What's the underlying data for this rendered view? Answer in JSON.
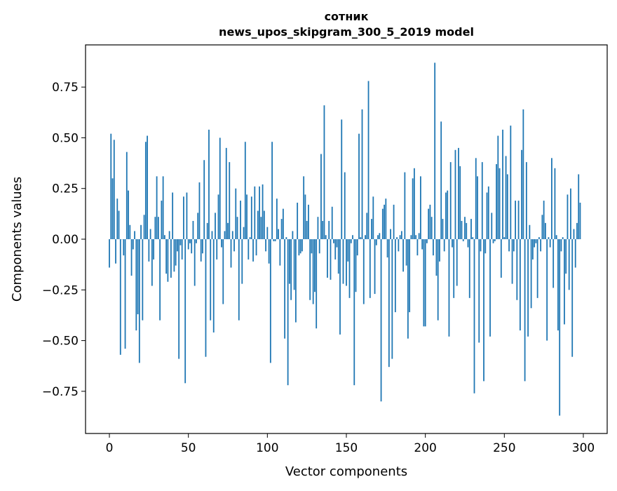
{
  "chart_data": {
    "type": "bar",
    "title": "сотник",
    "subtitle": "news_upos_skipgram_300_5_2019 model",
    "xlabel": "Vector components",
    "ylabel": "Components values",
    "xlim": [
      -15.1,
      315.1
    ],
    "ylim": [
      -0.958,
      0.958
    ],
    "xticks": [
      0,
      50,
      100,
      150,
      200,
      250,
      300
    ],
    "xtick_labels": [
      "0",
      "50",
      "100",
      "150",
      "200",
      "250",
      "300"
    ],
    "yticks": [
      -0.75,
      -0.5,
      -0.25,
      0.0,
      0.25,
      0.5,
      0.75
    ],
    "ytick_labels": [
      "−0.75",
      "−0.50",
      "−0.25",
      "0.00",
      "0.25",
      "0.50",
      "0.75"
    ],
    "grid": false,
    "color": "#1f77b4",
    "values": [
      -0.14,
      0.52,
      0.3,
      0.49,
      -0.12,
      0.2,
      0.14,
      -0.57,
      0.0,
      -0.08,
      -0.54,
      0.43,
      0.24,
      0.07,
      -0.18,
      -0.05,
      0.04,
      -0.45,
      -0.37,
      -0.61,
      0.07,
      -0.4,
      0.12,
      0.48,
      0.51,
      -0.11,
      0.05,
      -0.23,
      -0.1,
      0.11,
      0.31,
      0.11,
      -0.4,
      0.19,
      0.31,
      0.02,
      -0.17,
      -0.21,
      0.04,
      -0.19,
      0.23,
      -0.16,
      -0.13,
      -0.06,
      -0.59,
      -0.03,
      -0.1,
      0.21,
      -0.71,
      0.23,
      -0.05,
      -0.02,
      -0.07,
      0.09,
      -0.23,
      -0.02,
      0.13,
      0.28,
      -0.11,
      -0.07,
      0.39,
      -0.58,
      0.08,
      0.54,
      -0.4,
      0.04,
      -0.46,
      0.13,
      -0.1,
      0.22,
      0.5,
      -0.04,
      -0.32,
      0.04,
      0.45,
      0.08,
      0.38,
      -0.14,
      0.04,
      -0.06,
      0.25,
      0.11,
      -0.4,
      0.19,
      -0.22,
      0.06,
      0.48,
      0.22,
      -0.1,
      0.01,
      0.21,
      -0.11,
      0.26,
      -0.08,
      0.14,
      0.26,
      0.11,
      0.27,
      0.14,
      -0.06,
      0.06,
      -0.12,
      -0.61,
      0.48,
      -0.01,
      -0.01,
      0.2,
      0.05,
      -0.13,
      0.1,
      0.15,
      -0.49,
      0.01,
      -0.72,
      -0.22,
      -0.3,
      0.04,
      -0.25,
      -0.41,
      0.18,
      -0.08,
      -0.07,
      -0.06,
      0.31,
      0.22,
      0.09,
      0.17,
      -0.3,
      -0.07,
      -0.32,
      -0.26,
      -0.44,
      0.11,
      -0.07,
      0.42,
      0.09,
      0.66,
      0.02,
      -0.19,
      0.09,
      -0.2,
      0.16,
      -0.02,
      -0.1,
      -0.04,
      -0.17,
      -0.47,
      0.59,
      -0.22,
      0.33,
      -0.23,
      -0.11,
      -0.29,
      -0.02,
      0.02,
      -0.72,
      -0.26,
      -0.08,
      0.52,
      0.01,
      0.64,
      -0.32,
      0.02,
      0.13,
      0.78,
      -0.29,
      0.1,
      0.21,
      -0.27,
      -0.03,
      0.02,
      0.03,
      -0.8,
      0.15,
      0.17,
      0.2,
      -0.09,
      -0.63,
      0.05,
      -0.59,
      0.17,
      -0.36,
      0.01,
      -0.06,
      0.02,
      0.04,
      -0.16,
      0.33,
      -0.13,
      -0.49,
      -0.36,
      0.02,
      0.3,
      0.35,
      0.02,
      -0.08,
      0.03,
      0.31,
      -0.05,
      -0.43,
      -0.43,
      -0.02,
      0.15,
      0.17,
      0.11,
      -0.08,
      0.87,
      -0.18,
      -0.4,
      -0.11,
      0.58,
      0.1,
      -0.06,
      0.23,
      0.24,
      -0.48,
      0.38,
      -0.04,
      -0.29,
      0.44,
      -0.23,
      0.45,
      0.36,
      0.09,
      -0.01,
      0.11,
      0.08,
      -0.04,
      -0.29,
      0.1,
      0.01,
      -0.76,
      0.4,
      0.31,
      -0.51,
      -0.06,
      0.38,
      -0.7,
      -0.07,
      0.23,
      0.26,
      -0.48,
      0.13,
      -0.02,
      -0.01,
      0.37,
      0.51,
      0.35,
      -0.19,
      0.54,
      0.01,
      0.41,
      0.32,
      -0.06,
      0.56,
      -0.22,
      -0.06,
      0.19,
      -0.3,
      0.19,
      -0.45,
      0.44,
      0.64,
      -0.7,
      0.38,
      -0.48,
      0.07,
      -0.34,
      -0.1,
      -0.04,
      -0.02,
      -0.29,
      0.01,
      -0.06,
      0.12,
      0.19,
      0.08,
      -0.5,
      0.01,
      -0.04,
      0.4,
      -0.24,
      0.35,
      0.02,
      -0.45,
      -0.87,
      -0.06,
      0.01,
      -0.42,
      -0.17,
      0.22,
      -0.25,
      0.25,
      -0.58,
      0.05,
      -0.14,
      0.08,
      0.32,
      0.18
    ]
  }
}
